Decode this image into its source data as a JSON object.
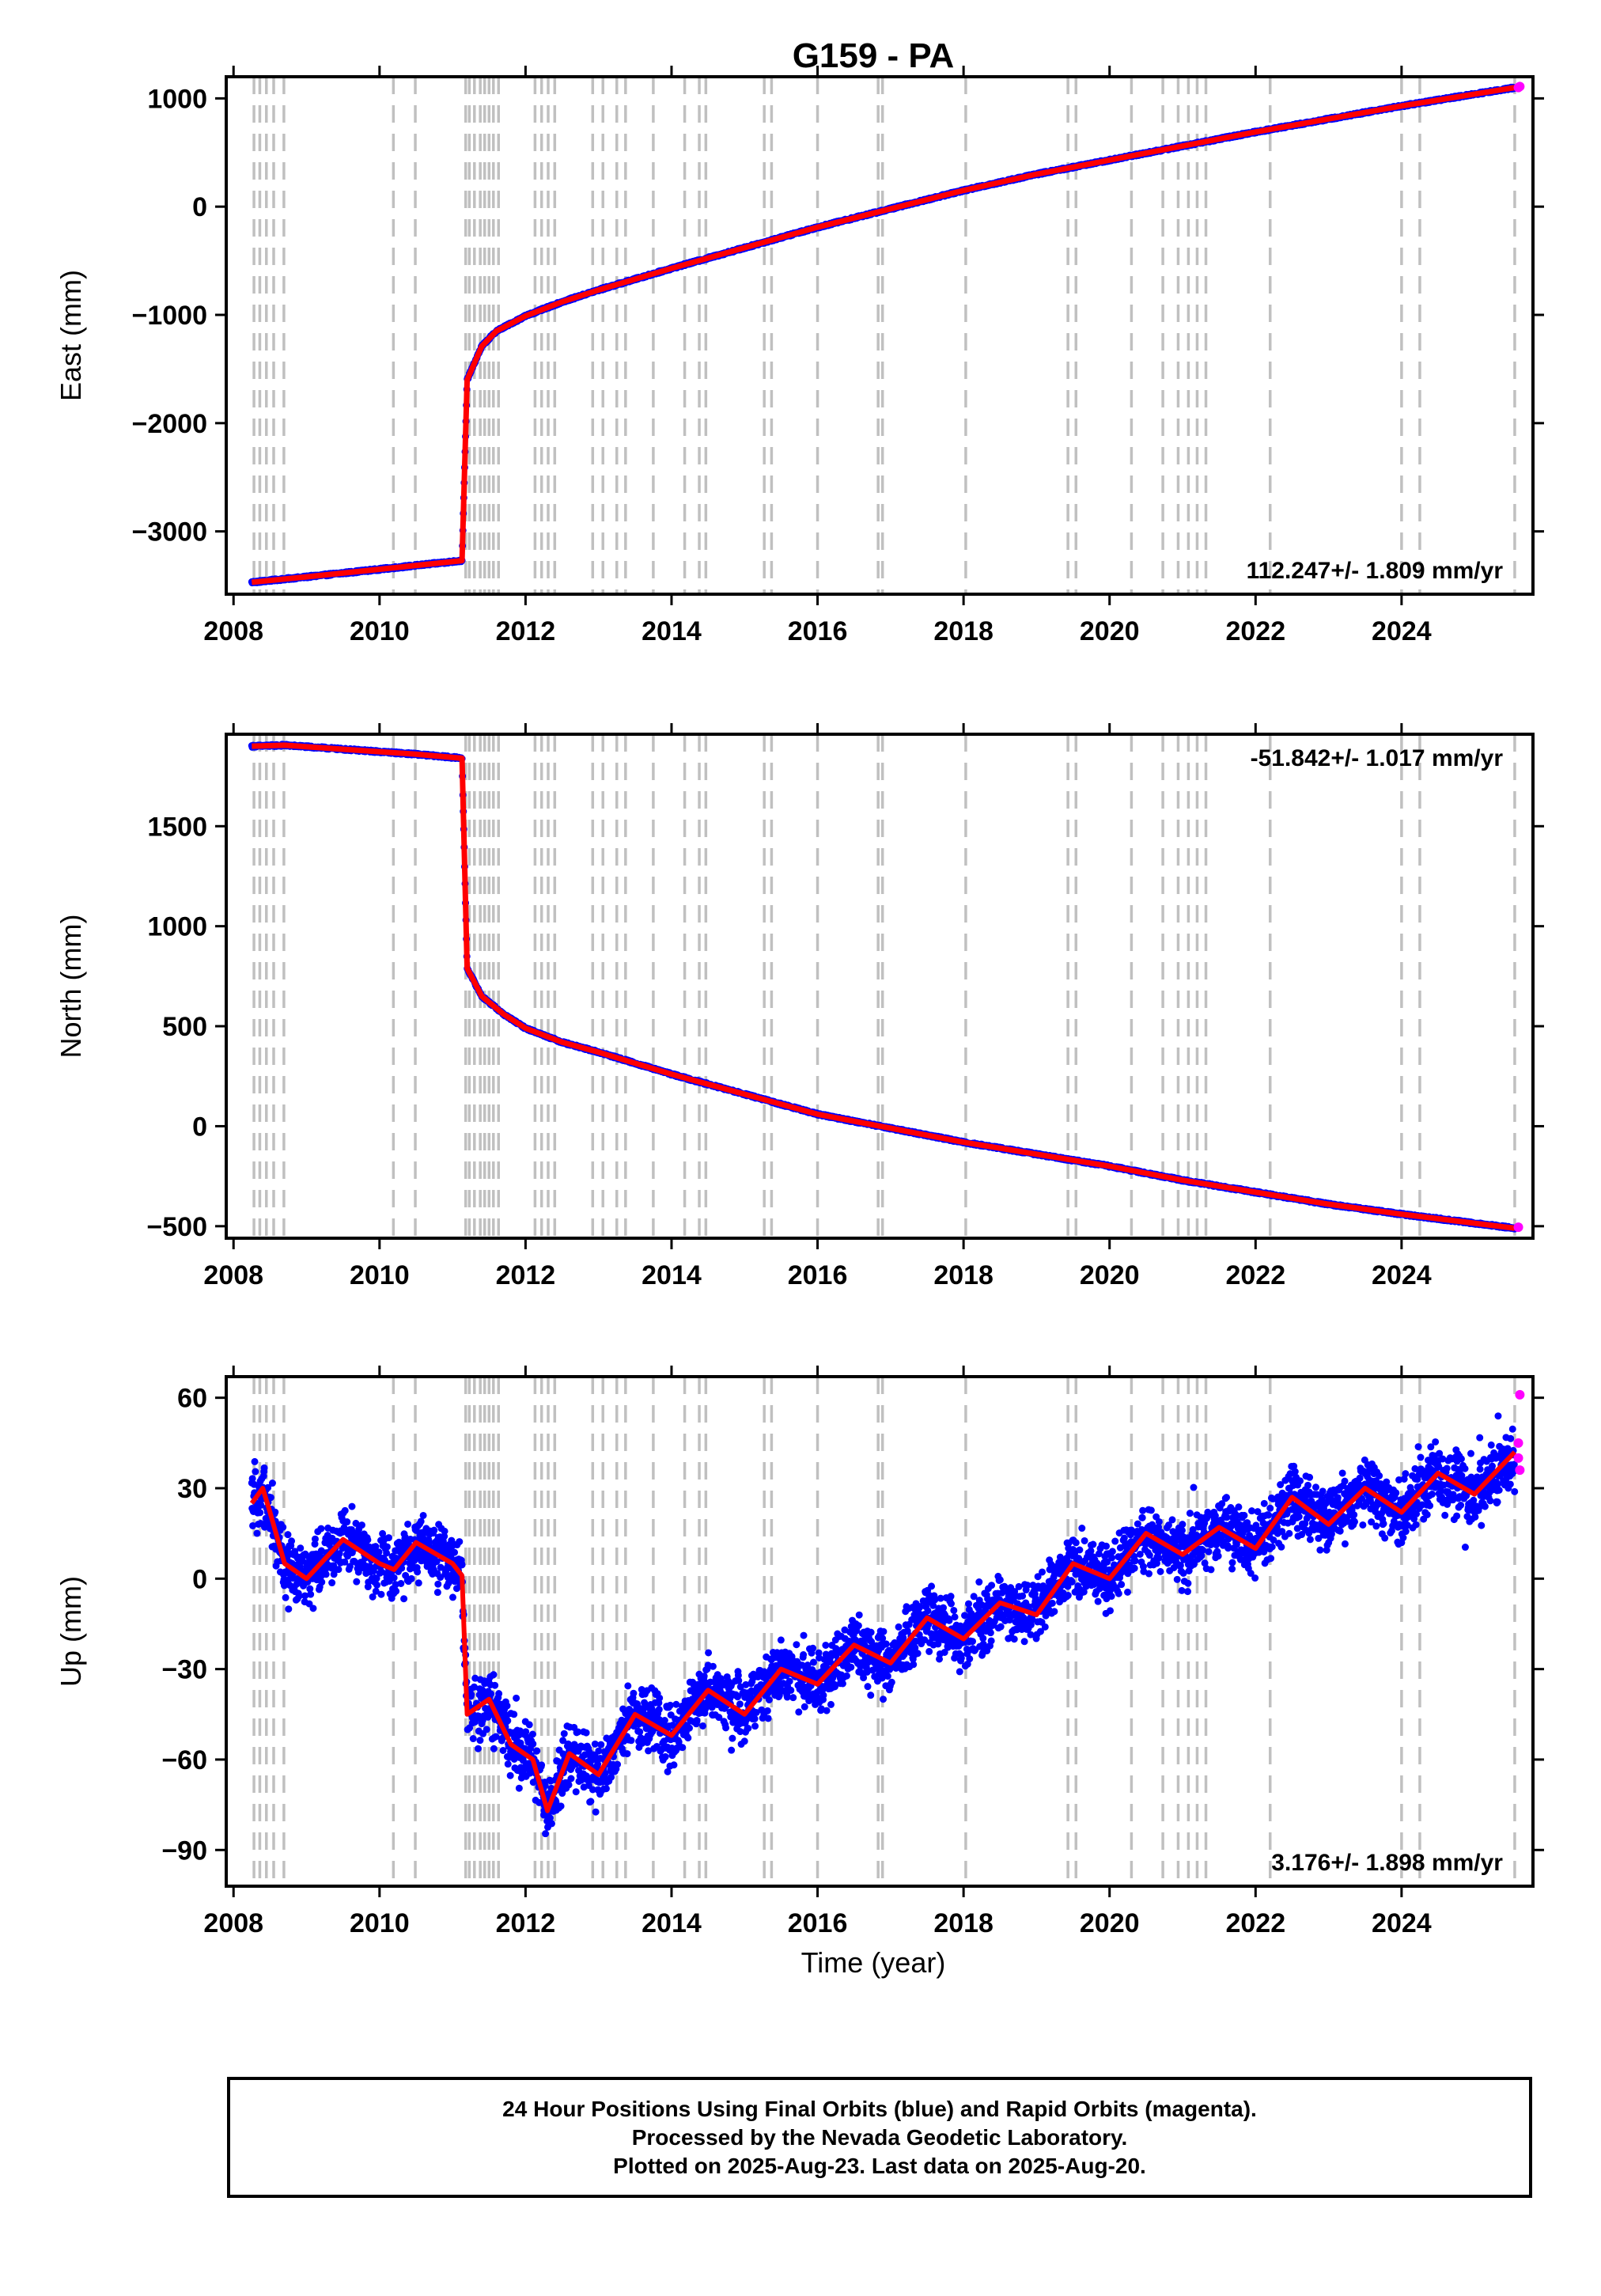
{
  "title": "G159 - PA",
  "xlabel": "Time (year)",
  "caption": {
    "line1": "24 Hour Positions Using Final Orbits (blue) and Rapid Orbits (magenta).",
    "line2": "Processed by the Nevada Geodetic Laboratory.",
    "line3": "Plotted on 2025-Aug-23. Last data on 2025-Aug-20."
  },
  "colors": {
    "final": "#0000ff",
    "rapid": "#ff00ff",
    "model": "#ff0000",
    "event_lines": "#c0c0c0"
  },
  "x_ticks": [
    "2008",
    "2010",
    "2012",
    "2014",
    "2016",
    "2018",
    "2020",
    "2022",
    "2024"
  ],
  "chart_data": [
    {
      "type": "scatter",
      "ylabel": "East (mm)",
      "xlim": [
        2007.9,
        2025.8
      ],
      "ylim": [
        -3580,
        1200
      ],
      "yticks": [
        1000,
        0,
        -1000,
        -2000,
        -3000
      ],
      "rate": "112.247+/- 1.809 mm/yr",
      "rate_position": "bottom-right",
      "series": [
        {
          "name": "Final Orbits (blue)",
          "x": [
            2008.25,
            2009.0,
            2010.0,
            2011.13,
            2011.2,
            2011.4,
            2011.6,
            2012.0,
            2012.5,
            2013.0,
            2014.0,
            2015.0,
            2016.0,
            2017.0,
            2018.0,
            2019.0,
            2020.0,
            2021.0,
            2022.0,
            2023.0,
            2024.0,
            2025.55
          ],
          "y": [
            -3470,
            -3420,
            -3350,
            -3270,
            -1600,
            -1290,
            -1150,
            -1010,
            -880,
            -770,
            -570,
            -380,
            -190,
            -20,
            150,
            300,
            430,
            560,
            690,
            810,
            930,
            1100
          ]
        },
        {
          "name": "Rapid Orbits (magenta)",
          "x": [
            2025.6,
            2025.62
          ],
          "y": [
            1100,
            1110
          ]
        }
      ]
    },
    {
      "type": "scatter",
      "ylabel": "North (mm)",
      "xlim": [
        2007.9,
        2025.8
      ],
      "ylim": [
        -560,
        1960
      ],
      "yticks": [
        1500,
        1000,
        500,
        0,
        -500
      ],
      "rate": "-51.842+/- 1.017 mm/yr",
      "rate_position": "top-right",
      "series": [
        {
          "name": "Final Orbits (blue)",
          "x": [
            2008.25,
            2008.7,
            2009.5,
            2010.5,
            2011.13,
            2011.2,
            2011.4,
            2011.7,
            2012.0,
            2012.5,
            2013.0,
            2014.0,
            2015.0,
            2016.0,
            2017.0,
            2018.0,
            2019.0,
            2020.0,
            2021.0,
            2022.0,
            2023.0,
            2024.0,
            2025.55
          ],
          "y": [
            1900,
            1905,
            1885,
            1860,
            1840,
            790,
            650,
            560,
            490,
            420,
            370,
            260,
            160,
            60,
            -10,
            -80,
            -140,
            -200,
            -270,
            -330,
            -390,
            -440,
            -510
          ]
        },
        {
          "name": "Rapid Orbits (magenta)",
          "x": [
            2025.6
          ],
          "y": [
            -505
          ]
        }
      ]
    },
    {
      "type": "scatter",
      "ylabel": "Up (mm)",
      "xlim": [
        2007.9,
        2025.8
      ],
      "ylim": [
        -102,
        67
      ],
      "yticks": [
        60,
        30,
        0,
        -30,
        -60,
        -90
      ],
      "rate": "3.176+/- 1.898 mm/yr",
      "rate_position": "bottom-right",
      "series": [
        {
          "name": "Final Orbits (blue)",
          "x": [
            2008.25,
            2008.4,
            2008.5,
            2008.7,
            2009.0,
            2009.5,
            2010.0,
            2010.2,
            2010.5,
            2011.0,
            2011.13,
            2011.2,
            2011.5,
            2011.8,
            2012.1,
            2012.3,
            2012.6,
            2013.0,
            2013.5,
            2014.0,
            2014.5,
            2015.0,
            2015.5,
            2016.0,
            2016.5,
            2017.0,
            2017.5,
            2018.0,
            2018.5,
            2019.0,
            2019.5,
            2020.0,
            2020.5,
            2021.0,
            2021.5,
            2022.0,
            2022.5,
            2023.0,
            2023.5,
            2024.0,
            2024.5,
            2025.0,
            2025.55
          ],
          "y": [
            25,
            30,
            22,
            5,
            0,
            13,
            5,
            3,
            12,
            5,
            1,
            -45,
            -40,
            -55,
            -60,
            -77,
            -58,
            -65,
            -45,
            -52,
            -37,
            -45,
            -30,
            -35,
            -22,
            -28,
            -13,
            -20,
            -8,
            -12,
            5,
            0,
            15,
            8,
            17,
            10,
            27,
            18,
            30,
            22,
            35,
            28,
            42
          ]
        },
        {
          "name": "Rapid Orbits (magenta)",
          "x": [
            2025.6,
            2025.6,
            2025.62,
            2025.62
          ],
          "y": [
            45,
            40,
            61,
            36
          ]
        }
      ]
    }
  ],
  "event_years": [
    2008.28,
    2008.36,
    2008.45,
    2008.55,
    2008.69,
    2010.19,
    2010.49,
    2011.18,
    2011.23,
    2011.3,
    2011.38,
    2011.44,
    2011.5,
    2011.56,
    2011.63,
    2012.13,
    2012.22,
    2012.31,
    2012.4,
    2012.92,
    2013.06,
    2013.25,
    2013.37,
    2013.75,
    2014.18,
    2014.38,
    2014.47,
    2015.27,
    2015.37,
    2016.0,
    2016.83,
    2016.89,
    2018.03,
    2019.43,
    2019.54,
    2020.3,
    2020.73,
    2020.94,
    2021.08,
    2021.2,
    2021.32,
    2022.2,
    2024.0,
    2024.25,
    2025.55
  ]
}
